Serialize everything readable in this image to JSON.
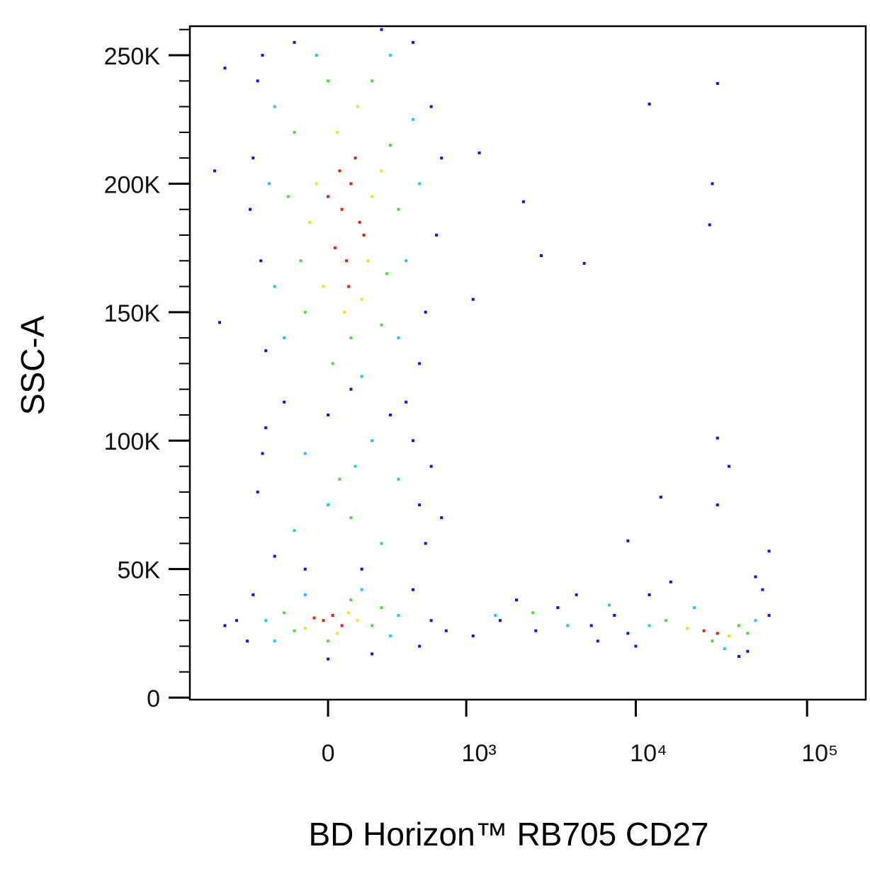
{
  "chart_data": {
    "type": "scatter",
    "xlabel": "BD Horizon™ RB705 CD27",
    "ylabel": "SSC-A",
    "xscale": "biexponential",
    "xlim": [
      -1000,
      220000
    ],
    "ylim": [
      -800,
      261300
    ],
    "xticks": [
      0,
      {
        "value": 1000,
        "label": "10³"
      },
      {
        "value": 10000,
        "label": "10⁴"
      },
      {
        "value": 100000,
        "label": "10⁵"
      }
    ],
    "yticks": [
      0,
      {
        "value": 50000,
        "label": "50K"
      },
      {
        "value": 100000,
        "label": "100K"
      },
      {
        "value": 150000,
        "label": "150K"
      },
      {
        "value": 200000,
        "label": "200K"
      },
      {
        "value": 250000,
        "label": "250K"
      }
    ],
    "yminorticks": [
      10000,
      20000,
      30000,
      40000,
      60000,
      70000,
      80000,
      90000,
      110000,
      120000,
      130000,
      140000,
      160000,
      170000,
      180000,
      190000,
      210000,
      220000,
      230000,
      240000,
      260000
    ],
    "series": [
      {
        "color": "#1010ff",
        "x": [
          -350,
          600,
          -330,
          650,
          -150,
          450,
          -300,
          500,
          100,
          -380,
          700,
          -400,
          550,
          -320,
          250,
          400,
          -200,
          1200,
          2200,
          2800,
          5000,
          12000,
          30000,
          28000,
          27000,
          1100,
          -600,
          -700,
          -650,
          -300,
          450,
          -350,
          500,
          -250,
          550,
          0,
          300,
          -320,
          600,
          150,
          -100,
          700,
          -500,
          600,
          -420,
          500,
          -380,
          450,
          0,
          200,
          -600,
          750,
          1100,
          1600,
          2000,
          2600,
          3500,
          4500,
          5500,
          7500,
          9000,
          6000,
          10000,
          60000,
          55000,
          12000,
          40000,
          50000,
          16000,
          45000,
          30000,
          35000,
          60000,
          9000,
          14000,
          30000
        ],
        "values": [
          240000,
          230000,
          170000,
          180000,
          255000,
          255000,
          135000,
          130000,
          120000,
          210000,
          210000,
          190000,
          150000,
          250000,
          260000,
          115000,
          115000,
          212000,
          193000,
          172000,
          169000,
          231000,
          239000,
          200000,
          184000,
          155000,
          245000,
          205000,
          146000,
          105000,
          100000,
          80000,
          75000,
          55000,
          60000,
          110000,
          110000,
          95000,
          90000,
          50000,
          50000,
          70000,
          30000,
          30000,
          22000,
          20000,
          40000,
          42000,
          15000,
          17000,
          28000,
          26000,
          24000,
          30000,
          38000,
          26000,
          35000,
          40000,
          28000,
          32000,
          25000,
          22000,
          20000,
          32000,
          42000,
          40000,
          16000,
          47000,
          45000,
          18000,
          101000,
          90000,
          57000,
          61000,
          78000,
          75000
        ]
      },
      {
        "color": "#20c8ff",
        "x": [
          -250,
          450,
          -250,
          400,
          -50,
          300,
          -200,
          350,
          150,
          -280,
          500,
          -100,
          200,
          0,
          250,
          -150,
          120,
          350,
          -300,
          350,
          -100,
          300,
          -250,
          150,
          12000,
          50000,
          22000,
          33000,
          1500,
          4000,
          7000
        ],
        "values": [
          230000,
          225000,
          160000,
          170000,
          250000,
          250000,
          140000,
          140000,
          125000,
          200000,
          200000,
          95000,
          100000,
          75000,
          60000,
          65000,
          90000,
          85000,
          30000,
          32000,
          40000,
          24000,
          22000,
          42000,
          28000,
          30000,
          35000,
          19000,
          32000,
          28000,
          36000
        ]
      },
      {
        "color": "#50dc3c",
        "x": [
          -150,
          300,
          -120,
          280,
          0,
          200,
          -100,
          250,
          100,
          -180,
          350,
          20,
          50,
          100,
          -200,
          200,
          0,
          250,
          -150,
          100,
          15000,
          40000,
          28000,
          45000,
          2500
        ],
        "values": [
          220000,
          215000,
          170000,
          165000,
          240000,
          240000,
          150000,
          145000,
          140000,
          195000,
          190000,
          130000,
          85000,
          70000,
          33000,
          28000,
          22000,
          35000,
          26000,
          38000,
          30000,
          28000,
          22000,
          25000,
          33000
        ]
      },
      {
        "color": "#f0e41c",
        "x": [
          -50,
          200,
          180,
          -20,
          40,
          130,
          250,
          70,
          -80,
          150,
          -100,
          90,
          40,
          130,
          20000,
          35000
        ],
        "values": [
          200000,
          195000,
          170000,
          160000,
          220000,
          230000,
          205000,
          150000,
          185000,
          155000,
          27000,
          33000,
          25000,
          30000,
          27000,
          24000
        ]
      },
      {
        "color": "#e8200a",
        "x": [
          60,
          100,
          140,
          30,
          80,
          120,
          0,
          160,
          90,
          50,
          -20,
          20,
          60,
          -60,
          25000,
          30000
        ],
        "values": [
          190000,
          200000,
          185000,
          175000,
          170000,
          210000,
          195000,
          180000,
          160000,
          205000,
          30000,
          32000,
          28000,
          31000,
          26000,
          25000
        ]
      }
    ]
  }
}
